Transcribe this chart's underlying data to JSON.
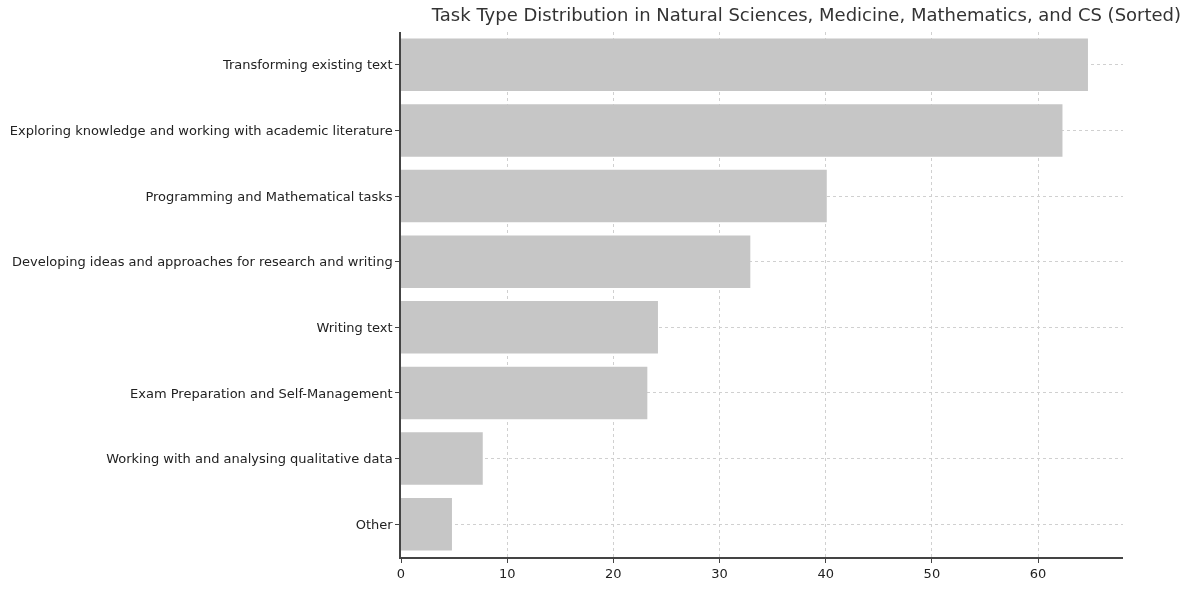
{
  "chart_data": {
    "type": "bar",
    "orientation": "horizontal",
    "title": "Task Type Distribution in Natural Sciences, Medicine, Mathematics, and CS (Sorted)",
    "categories": [
      "Transforming existing text",
      "Exploring knowledge and working with academic literature",
      "Programming and Mathematical tasks",
      "Developing ideas and approaches for research and writing",
      "Writing text",
      "Exam Preparation and Self-Management",
      "Working with and analysing qualitative data",
      "Other"
    ],
    "values": [
      64.7,
      62.3,
      40.1,
      32.9,
      24.2,
      23.2,
      7.7,
      4.8
    ],
    "color": "#c6c6c6",
    "xlim": [
      0,
      68
    ],
    "xticks": [
      0,
      10,
      20,
      30,
      40,
      50,
      60
    ],
    "grid": true
  }
}
